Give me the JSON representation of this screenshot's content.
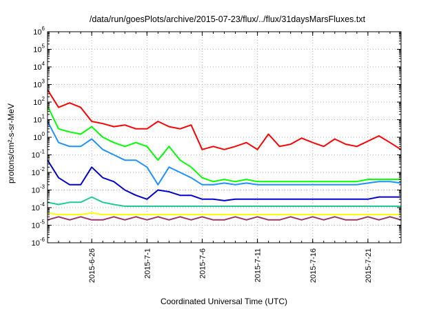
{
  "chart_data": {
    "type": "line",
    "title": "/data/run/goesPlots/archive/2015-07-23/flux/../flux/31daysMarsFluxes.txt",
    "xlabel": "Coordinated Universal Time (UTC)",
    "ylabel": "protons/cm²-s-sr-MeV",
    "y_scale": "log",
    "ylim": [
      1e-06,
      1000000.0
    ],
    "xlim": [
      "2015-06-22",
      "2015-07-24"
    ],
    "grid": true,
    "legend": "none",
    "x_ticks": [
      {
        "date": "2015-06-26",
        "label": "2015-6-26"
      },
      {
        "date": "2015-07-01",
        "label": "2015-7-1"
      },
      {
        "date": "2015-07-06",
        "label": "2015-7-6"
      },
      {
        "date": "2015-07-11",
        "label": "2015-7-11"
      },
      {
        "date": "2015-07-16",
        "label": "2015-7-16"
      },
      {
        "date": "2015-07-21",
        "label": "2015-7-21"
      }
    ],
    "y_ticks": [
      {
        "base": "10",
        "exp": "-6"
      },
      {
        "base": "10",
        "exp": "-5"
      },
      {
        "base": "10",
        "exp": "-4"
      },
      {
        "base": "10",
        "exp": "-3"
      },
      {
        "base": "10",
        "exp": "-2"
      },
      {
        "base": "10",
        "exp": "-1"
      },
      {
        "base": "10",
        "exp": "0"
      },
      {
        "base": "10",
        "exp": "1"
      },
      {
        "base": "10",
        "exp": "2"
      },
      {
        "base": "10",
        "exp": "3"
      },
      {
        "base": "10",
        "exp": "4"
      },
      {
        "base": "10",
        "exp": "5"
      },
      {
        "base": "10",
        "exp": "6"
      }
    ],
    "series": [
      {
        "color": "#ff0000",
        "x": [
          "2015-06-22",
          "2015-06-23",
          "2015-06-24",
          "2015-06-25",
          "2015-06-26",
          "2015-06-27",
          "2015-06-28",
          "2015-06-29",
          "2015-06-30",
          "2015-07-01",
          "2015-07-02",
          "2015-07-03",
          "2015-07-04",
          "2015-07-05",
          "2015-07-06",
          "2015-07-07",
          "2015-07-08",
          "2015-07-09",
          "2015-07-10",
          "2015-07-11",
          "2015-07-12",
          "2015-07-13",
          "2015-07-14",
          "2015-07-15",
          "2015-07-16",
          "2015-07-17",
          "2015-07-18",
          "2015-07-19",
          "2015-07-20",
          "2015-07-21",
          "2015-07-22",
          "2015-07-23",
          "2015-07-24"
        ],
        "values": [
          500,
          50,
          90,
          50,
          8,
          6,
          4,
          5,
          3,
          3,
          8,
          4,
          3,
          5,
          0.2,
          0.3,
          0.2,
          0.3,
          0.5,
          0.2,
          1.5,
          0.3,
          0.4,
          0.9,
          0.5,
          0.3,
          0.8,
          0.4,
          0.3,
          0.6,
          1.2,
          0.5,
          0.2
        ]
      },
      {
        "color": "#00ff00",
        "x": [
          "2015-06-22",
          "2015-06-23",
          "2015-06-24",
          "2015-06-25",
          "2015-06-26",
          "2015-06-27",
          "2015-06-28",
          "2015-06-29",
          "2015-06-30",
          "2015-07-01",
          "2015-07-02",
          "2015-07-03",
          "2015-07-04",
          "2015-07-05",
          "2015-07-06",
          "2015-07-07",
          "2015-07-08",
          "2015-07-09",
          "2015-07-10",
          "2015-07-11",
          "2015-07-12",
          "2015-07-13",
          "2015-07-14",
          "2015-07-15",
          "2015-07-16",
          "2015-07-17",
          "2015-07-18",
          "2015-07-19",
          "2015-07-20",
          "2015-07-21",
          "2015-07-22",
          "2015-07-23",
          "2015-07-24"
        ],
        "values": [
          60,
          3,
          2,
          1.5,
          4,
          1,
          0.5,
          0.3,
          0.5,
          0.3,
          0.05,
          0.3,
          0.05,
          0.02,
          0.005,
          0.003,
          0.004,
          0.003,
          0.004,
          0.003,
          0.003,
          0.003,
          0.003,
          0.003,
          0.003,
          0.003,
          0.003,
          0.003,
          0.003,
          0.004,
          0.004,
          0.004,
          0.004
        ]
      },
      {
        "color": "#1e90ff",
        "x": [
          "2015-06-22",
          "2015-06-23",
          "2015-06-24",
          "2015-06-25",
          "2015-06-26",
          "2015-06-27",
          "2015-06-28",
          "2015-06-29",
          "2015-06-30",
          "2015-07-01",
          "2015-07-02",
          "2015-07-03",
          "2015-07-04",
          "2015-07-05",
          "2015-07-06",
          "2015-07-07",
          "2015-07-08",
          "2015-07-09",
          "2015-07-10",
          "2015-07-11",
          "2015-07-12",
          "2015-07-13",
          "2015-07-14",
          "2015-07-15",
          "2015-07-16",
          "2015-07-17",
          "2015-07-18",
          "2015-07-19",
          "2015-07-20",
          "2015-07-21",
          "2015-07-22",
          "2015-07-23",
          "2015-07-24"
        ],
        "values": [
          8,
          0.5,
          0.3,
          0.3,
          0.8,
          0.2,
          0.1,
          0.05,
          0.05,
          0.02,
          0.002,
          0.02,
          0.01,
          0.005,
          0.002,
          0.002,
          0.0025,
          0.002,
          0.0025,
          0.002,
          0.002,
          0.002,
          0.002,
          0.002,
          0.002,
          0.002,
          0.002,
          0.002,
          0.002,
          0.0025,
          0.003,
          0.003,
          0.0025
        ]
      },
      {
        "color": "#0000cd",
        "x": [
          "2015-06-22",
          "2015-06-23",
          "2015-06-24",
          "2015-06-25",
          "2015-06-26",
          "2015-06-27",
          "2015-06-28",
          "2015-06-29",
          "2015-06-30",
          "2015-07-01",
          "2015-07-02",
          "2015-07-03",
          "2015-07-04",
          "2015-07-05",
          "2015-07-06",
          "2015-07-07",
          "2015-07-08",
          "2015-07-09",
          "2015-07-10",
          "2015-07-11",
          "2015-07-12",
          "2015-07-13",
          "2015-07-14",
          "2015-07-15",
          "2015-07-16",
          "2015-07-17",
          "2015-07-18",
          "2015-07-19",
          "2015-07-20",
          "2015-07-21",
          "2015-07-22",
          "2015-07-23",
          "2015-07-24"
        ],
        "values": [
          0.05,
          0.005,
          0.002,
          0.002,
          0.02,
          0.005,
          0.003,
          0.001,
          0.0005,
          0.0003,
          0.001,
          0.0008,
          0.0005,
          0.0005,
          0.0003,
          0.0003,
          0.00025,
          0.0003,
          0.0003,
          0.0003,
          0.0003,
          0.0003,
          0.0003,
          0.0003,
          0.0003,
          0.0003,
          0.0003,
          0.0003,
          0.0003,
          0.0003,
          0.0004,
          0.0004,
          0.0004
        ]
      },
      {
        "color": "#20c997",
        "x": [
          "2015-06-22",
          "2015-06-23",
          "2015-06-24",
          "2015-06-25",
          "2015-06-26",
          "2015-06-27",
          "2015-06-28",
          "2015-06-29",
          "2015-06-30",
          "2015-07-01",
          "2015-07-02",
          "2015-07-03",
          "2015-07-04",
          "2015-07-05",
          "2015-07-06",
          "2015-07-07",
          "2015-07-08",
          "2015-07-09",
          "2015-07-10",
          "2015-07-11",
          "2015-07-12",
          "2015-07-13",
          "2015-07-14",
          "2015-07-15",
          "2015-07-16",
          "2015-07-17",
          "2015-07-18",
          "2015-07-19",
          "2015-07-20",
          "2015-07-21",
          "2015-07-22",
          "2015-07-23",
          "2015-07-24"
        ],
        "values": [
          0.0002,
          0.00015,
          0.0002,
          0.0002,
          0.0004,
          0.0002,
          0.00015,
          0.00012,
          0.00012,
          0.00012,
          0.00012,
          0.00012,
          0.00012,
          0.00012,
          0.00012,
          0.00012,
          0.00012,
          0.00012,
          0.00012,
          0.00012,
          0.00012,
          0.00012,
          0.00012,
          0.00012,
          0.00012,
          0.00012,
          0.00012,
          0.00012,
          0.00012,
          0.00012,
          0.00012,
          0.00012,
          0.00012
        ]
      },
      {
        "color": "#ffff00",
        "x": [
          "2015-06-22",
          "2015-06-23",
          "2015-06-24",
          "2015-06-25",
          "2015-06-26",
          "2015-06-27",
          "2015-06-28",
          "2015-06-29",
          "2015-06-30",
          "2015-07-01",
          "2015-07-02",
          "2015-07-03",
          "2015-07-04",
          "2015-07-05",
          "2015-07-06",
          "2015-07-07",
          "2015-07-08",
          "2015-07-09",
          "2015-07-10",
          "2015-07-11",
          "2015-07-12",
          "2015-07-13",
          "2015-07-14",
          "2015-07-15",
          "2015-07-16",
          "2015-07-17",
          "2015-07-18",
          "2015-07-19",
          "2015-07-20",
          "2015-07-21",
          "2015-07-22",
          "2015-07-23",
          "2015-07-24"
        ],
        "values": [
          5e-05,
          4e-05,
          4e-05,
          4e-05,
          5e-05,
          4e-05,
          4e-05,
          4e-05,
          4e-05,
          4e-05,
          4e-05,
          4e-05,
          4e-05,
          4e-05,
          4e-05,
          4e-05,
          4e-05,
          4e-05,
          4e-05,
          4e-05,
          4e-05,
          4e-05,
          4e-05,
          4e-05,
          4e-05,
          4e-05,
          4e-05,
          4e-05,
          4e-05,
          4e-05,
          4e-05,
          4e-05,
          4e-05
        ]
      },
      {
        "color": "#993366",
        "x": [
          "2015-06-22",
          "2015-06-23",
          "2015-06-24",
          "2015-06-25",
          "2015-06-26",
          "2015-06-27",
          "2015-06-28",
          "2015-06-29",
          "2015-06-30",
          "2015-07-01",
          "2015-07-02",
          "2015-07-03",
          "2015-07-04",
          "2015-07-05",
          "2015-07-06",
          "2015-07-07",
          "2015-07-08",
          "2015-07-09",
          "2015-07-10",
          "2015-07-11",
          "2015-07-12",
          "2015-07-13",
          "2015-07-14",
          "2015-07-15",
          "2015-07-16",
          "2015-07-17",
          "2015-07-18",
          "2015-07-19",
          "2015-07-20",
          "2015-07-21",
          "2015-07-22",
          "2015-07-23",
          "2015-07-24"
        ],
        "values": [
          2e-05,
          3e-05,
          2e-05,
          3e-05,
          2e-05,
          2e-05,
          3e-05,
          2e-05,
          3e-05,
          2e-05,
          3e-05,
          2e-05,
          3e-05,
          2e-05,
          3e-05,
          2e-05,
          2e-05,
          3e-05,
          2e-05,
          3e-05,
          2e-05,
          2e-05,
          3e-05,
          2e-05,
          3e-05,
          2e-05,
          3e-05,
          2e-05,
          2e-05,
          3e-05,
          2e-05,
          3e-05,
          2e-05
        ]
      }
    ]
  }
}
